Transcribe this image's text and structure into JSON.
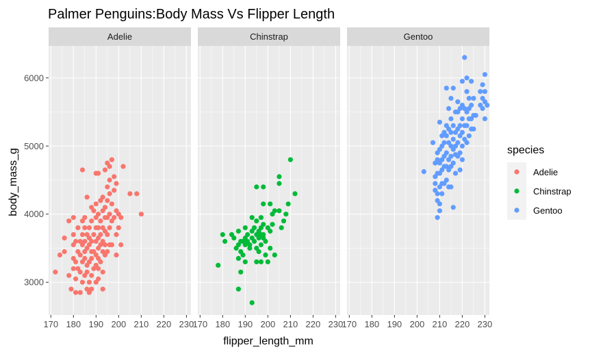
{
  "chart_data": {
    "type": "scatter",
    "title": "Palmer Penguins:Body Mass Vs Flipper Length",
    "xlabel": "flipper_length_mm",
    "ylabel": "body_mass_g",
    "xlim": [
      169,
      232
    ],
    "ylim": [
      2520,
      6470
    ],
    "x_ticks": [
      170,
      180,
      190,
      200,
      210,
      220,
      230
    ],
    "y_ticks": [
      3000,
      4000,
      5000,
      6000
    ],
    "grid": true,
    "facet_by": "species",
    "legend": {
      "title": "species",
      "position": "right"
    },
    "series": [
      {
        "name": "Adelie",
        "color": "#F8766D",
        "points": [
          [
            172,
            3150
          ],
          [
            174,
            3400
          ],
          [
            176,
            3450
          ],
          [
            176,
            3650
          ],
          [
            178,
            3900
          ],
          [
            178,
            3100
          ],
          [
            179,
            2900
          ],
          [
            180,
            3200
          ],
          [
            180,
            3350
          ],
          [
            180,
            3550
          ],
          [
            180,
            3700
          ],
          [
            180,
            3950
          ],
          [
            181,
            2850
          ],
          [
            181,
            3050
          ],
          [
            181,
            3300
          ],
          [
            181,
            3600
          ],
          [
            182,
            3200
          ],
          [
            182,
            3450
          ],
          [
            182,
            3800
          ],
          [
            183,
            2850
          ],
          [
            183,
            3150
          ],
          [
            183,
            3400
          ],
          [
            183,
            3600
          ],
          [
            184,
            3000
          ],
          [
            184,
            3300
          ],
          [
            184,
            3550
          ],
          [
            184,
            3700
          ],
          [
            184,
            3900
          ],
          [
            184,
            4650
          ],
          [
            185,
            3100
          ],
          [
            185,
            3350
          ],
          [
            185,
            3450
          ],
          [
            185,
            3600
          ],
          [
            185,
            3800
          ],
          [
            185,
            3950
          ],
          [
            186,
            2900
          ],
          [
            186,
            3150
          ],
          [
            186,
            3250
          ],
          [
            186,
            3500
          ],
          [
            186,
            3700
          ],
          [
            186,
            4250
          ],
          [
            187,
            2850
          ],
          [
            187,
            3000
          ],
          [
            187,
            3300
          ],
          [
            187,
            3550
          ],
          [
            187,
            3650
          ],
          [
            187,
            3800
          ],
          [
            188,
            2900
          ],
          [
            188,
            3100
          ],
          [
            188,
            3350
          ],
          [
            188,
            3450
          ],
          [
            188,
            3600
          ],
          [
            188,
            3900
          ],
          [
            188,
            4100
          ],
          [
            189,
            3200
          ],
          [
            189,
            3450
          ],
          [
            189,
            3700
          ],
          [
            189,
            4050
          ],
          [
            190,
            3000
          ],
          [
            190,
            3250
          ],
          [
            190,
            3400
          ],
          [
            190,
            3600
          ],
          [
            190,
            3800
          ],
          [
            190,
            3950
          ],
          [
            190,
            4150
          ],
          [
            190,
            4600
          ],
          [
            191,
            3050
          ],
          [
            191,
            3200
          ],
          [
            191,
            3350
          ],
          [
            191,
            3500
          ],
          [
            191,
            3650
          ],
          [
            191,
            3800
          ],
          [
            191,
            4000
          ],
          [
            191,
            4600
          ],
          [
            192,
            3300
          ],
          [
            192,
            3550
          ],
          [
            192,
            3700
          ],
          [
            192,
            3900
          ],
          [
            192,
            4200
          ],
          [
            193,
            2900
          ],
          [
            193,
            3150
          ],
          [
            193,
            3450
          ],
          [
            193,
            3600
          ],
          [
            193,
            3800
          ],
          [
            193,
            4050
          ],
          [
            193,
            4250
          ],
          [
            194,
            3400
          ],
          [
            194,
            3550
          ],
          [
            194,
            3750
          ],
          [
            194,
            3950
          ],
          [
            194,
            4100
          ],
          [
            194,
            4650
          ],
          [
            195,
            3450
          ],
          [
            195,
            3700
          ],
          [
            195,
            3950
          ],
          [
            195,
            4200
          ],
          [
            195,
            4400
          ],
          [
            195,
            4750
          ],
          [
            196,
            3550
          ],
          [
            196,
            3800
          ],
          [
            196,
            4000
          ],
          [
            196,
            4300
          ],
          [
            196,
            4500
          ],
          [
            196,
            4700
          ],
          [
            197,
            3550
          ],
          [
            197,
            3900
          ],
          [
            197,
            4150
          ],
          [
            197,
            4800
          ],
          [
            198,
            3950
          ],
          [
            198,
            4350
          ],
          [
            198,
            4550
          ],
          [
            199,
            3400
          ],
          [
            199,
            3700
          ],
          [
            199,
            4050
          ],
          [
            199,
            4450
          ],
          [
            200,
            3800
          ],
          [
            200,
            4000
          ],
          [
            201,
            3550
          ],
          [
            201,
            3950
          ],
          [
            202,
            4700
          ],
          [
            205,
            4300
          ],
          [
            208,
            4300
          ],
          [
            210,
            4000
          ]
        ]
      },
      {
        "name": "Chinstrap",
        "color": "#00BA38",
        "points": [
          [
            178,
            3250
          ],
          [
            180,
            3700
          ],
          [
            181,
            3600
          ],
          [
            184,
            3700
          ],
          [
            185,
            3650
          ],
          [
            186,
            3500
          ],
          [
            187,
            3350
          ],
          [
            187,
            3550
          ],
          [
            187,
            3750
          ],
          [
            187,
            2900
          ],
          [
            188,
            3150
          ],
          [
            188,
            3450
          ],
          [
            188,
            3600
          ],
          [
            189,
            3600
          ],
          [
            189,
            3400
          ],
          [
            190,
            3550
          ],
          [
            190,
            3650
          ],
          [
            190,
            3800
          ],
          [
            190,
            3300
          ],
          [
            191,
            3600
          ],
          [
            191,
            3700
          ],
          [
            192,
            3500
          ],
          [
            192,
            3550
          ],
          [
            193,
            3650
          ],
          [
            193,
            3750
          ],
          [
            193,
            3950
          ],
          [
            193,
            2700
          ],
          [
            194,
            3600
          ],
          [
            194,
            3800
          ],
          [
            195,
            3500
          ],
          [
            195,
            3700
          ],
          [
            195,
            3900
          ],
          [
            195,
            4400
          ],
          [
            195,
            3300
          ],
          [
            196,
            3650
          ],
          [
            196,
            3750
          ],
          [
            196,
            3450
          ],
          [
            197,
            3700
          ],
          [
            197,
            3550
          ],
          [
            197,
            3800
          ],
          [
            197,
            3950
          ],
          [
            197,
            3300
          ],
          [
            198,
            3700
          ],
          [
            198,
            3650
          ],
          [
            198,
            3850
          ],
          [
            198,
            4150
          ],
          [
            198,
            4400
          ],
          [
            199,
            3400
          ],
          [
            199,
            3600
          ],
          [
            200,
            3800
          ],
          [
            200,
            3300
          ],
          [
            201,
            3500
          ],
          [
            201,
            3750
          ],
          [
            201,
            4150
          ],
          [
            202,
            3850
          ],
          [
            202,
            4000
          ],
          [
            203,
            3400
          ],
          [
            203,
            4050
          ],
          [
            205,
            4050
          ],
          [
            205,
            4450
          ],
          [
            205,
            4550
          ],
          [
            206,
            3800
          ],
          [
            207,
            3900
          ],
          [
            208,
            4000
          ],
          [
            209,
            4150
          ],
          [
            210,
            4800
          ],
          [
            212,
            4300
          ]
        ]
      },
      {
        "name": "Gentoo",
        "color": "#619CFF",
        "points": [
          [
            203,
            4625
          ],
          [
            207,
            5050
          ],
          [
            208,
            4450
          ],
          [
            208,
            4350
          ],
          [
            208,
            4550
          ],
          [
            208,
            4750
          ],
          [
            209,
            3950
          ],
          [
            209,
            4200
          ],
          [
            209,
            4300
          ],
          [
            209,
            4600
          ],
          [
            209,
            4800
          ],
          [
            209,
            4900
          ],
          [
            210,
            4150
          ],
          [
            210,
            4400
          ],
          [
            210,
            4600
          ],
          [
            210,
            4750
          ],
          [
            210,
            4950
          ],
          [
            210,
            4050
          ],
          [
            210,
            5350
          ],
          [
            211,
            4450
          ],
          [
            211,
            4650
          ],
          [
            211,
            4800
          ],
          [
            211,
            5000
          ],
          [
            211,
            5150
          ],
          [
            211,
            4300
          ],
          [
            212,
            4450
          ],
          [
            212,
            4700
          ],
          [
            212,
            4850
          ],
          [
            212,
            5050
          ],
          [
            212,
            5200
          ],
          [
            213,
            4500
          ],
          [
            213,
            4700
          ],
          [
            213,
            4900
          ],
          [
            213,
            5150
          ],
          [
            213,
            5300
          ],
          [
            213,
            5850
          ],
          [
            214,
            4400
          ],
          [
            214,
            4650
          ],
          [
            214,
            4800
          ],
          [
            214,
            5050
          ],
          [
            214,
            5250
          ],
          [
            214,
            5550
          ],
          [
            215,
            4400
          ],
          [
            215,
            4700
          ],
          [
            215,
            4850
          ],
          [
            215,
            5000
          ],
          [
            215,
            5200
          ],
          [
            215,
            5400
          ],
          [
            215,
            5700
          ],
          [
            216,
            4100
          ],
          [
            216,
            4750
          ],
          [
            216,
            4950
          ],
          [
            216,
            5100
          ],
          [
            216,
            5300
          ],
          [
            216,
            5850
          ],
          [
            217,
            4600
          ],
          [
            217,
            4875
          ],
          [
            217,
            5000
          ],
          [
            217,
            5200
          ],
          [
            217,
            5500
          ],
          [
            218,
            4850
          ],
          [
            218,
            5050
          ],
          [
            218,
            5250
          ],
          [
            218,
            5500
          ],
          [
            218,
            5650
          ],
          [
            219,
            4650
          ],
          [
            219,
            4900
          ],
          [
            219,
            5150
          ],
          [
            219,
            5300
          ],
          [
            219,
            5550
          ],
          [
            220,
            4800
          ],
          [
            220,
            5000
          ],
          [
            220,
            5200
          ],
          [
            220,
            5400
          ],
          [
            220,
            5600
          ],
          [
            220,
            5950
          ],
          [
            221,
            5100
          ],
          [
            221,
            5300
          ],
          [
            221,
            5550
          ],
          [
            221,
            6300
          ],
          [
            222,
            5050
          ],
          [
            222,
            5300
          ],
          [
            222,
            5500
          ],
          [
            222,
            5800
          ],
          [
            222,
            6000
          ],
          [
            223,
            5150
          ],
          [
            223,
            5400
          ],
          [
            223,
            5550
          ],
          [
            223,
            5700
          ],
          [
            224,
            5250
          ],
          [
            224,
            5400
          ],
          [
            224,
            5600
          ],
          [
            224,
            5950
          ],
          [
            225,
            5250
          ],
          [
            225,
            5450
          ],
          [
            225,
            5700
          ],
          [
            226,
            5450
          ],
          [
            228,
            5600
          ],
          [
            228,
            5800
          ],
          [
            229,
            5550
          ],
          [
            229,
            5700
          ],
          [
            229,
            5900
          ],
          [
            230,
            5400
          ],
          [
            230,
            5650
          ],
          [
            230,
            5800
          ],
          [
            230,
            6050
          ],
          [
            231,
            5600
          ]
        ]
      }
    ]
  }
}
